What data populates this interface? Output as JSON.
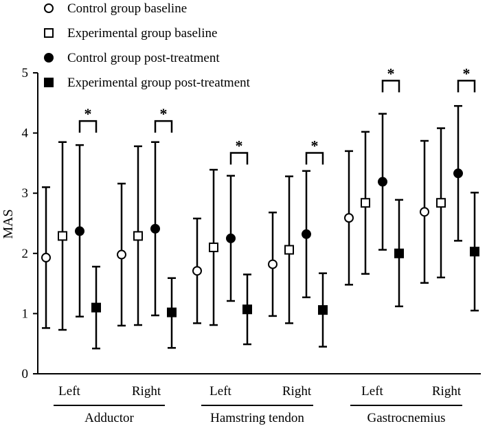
{
  "chart_data": {
    "type": "scatter",
    "ylabel": "MAS",
    "ylim": [
      0,
      5
    ],
    "yticks": [
      0,
      1,
      2,
      3,
      4,
      5
    ],
    "legend_position": "top-left",
    "groups": [
      {
        "name": "Adductor",
        "sides": [
          "Left",
          "Right"
        ]
      },
      {
        "name": "Hamstring tendon",
        "sides": [
          "Left",
          "Right"
        ]
      },
      {
        "name": "Gastrocnemius",
        "sides": [
          "Left",
          "Right"
        ]
      }
    ],
    "series": [
      {
        "name": "Control group baseline",
        "marker": "open-circle",
        "mean": [
          1.93,
          1.98,
          1.71,
          1.82,
          2.59,
          2.69
        ],
        "lower": [
          0.76,
          0.8,
          0.84,
          0.96,
          1.48,
          1.51
        ],
        "upper": [
          3.1,
          3.16,
          2.58,
          2.68,
          3.7,
          3.87
        ]
      },
      {
        "name": "Experimental group baseline",
        "marker": "open-square",
        "mean": [
          2.29,
          2.29,
          2.1,
          2.06,
          2.84,
          2.84
        ],
        "lower": [
          0.73,
          0.81,
          0.81,
          0.84,
          1.66,
          1.6
        ],
        "upper": [
          3.85,
          3.78,
          3.39,
          3.28,
          4.02,
          4.08
        ]
      },
      {
        "name": "Control group post-treatment",
        "marker": "filled-circle",
        "mean": [
          2.37,
          2.41,
          2.25,
          2.32,
          3.19,
          3.33
        ],
        "lower": [
          0.95,
          0.97,
          1.21,
          1.27,
          2.06,
          2.21
        ],
        "upper": [
          3.8,
          3.85,
          3.29,
          3.37,
          4.32,
          4.45
        ]
      },
      {
        "name": "Experimental group post-treatment",
        "marker": "filled-square",
        "mean": [
          1.1,
          1.02,
          1.07,
          1.06,
          2.0,
          2.03
        ],
        "lower": [
          0.42,
          0.43,
          0.49,
          0.45,
          1.12,
          1.05
        ],
        "upper": [
          1.78,
          1.59,
          1.65,
          1.67,
          2.89,
          3.01
        ]
      }
    ],
    "significance": {
      "label": "*",
      "y": [
        4.2,
        4.2,
        3.67,
        3.67,
        4.87,
        4.87
      ]
    }
  }
}
